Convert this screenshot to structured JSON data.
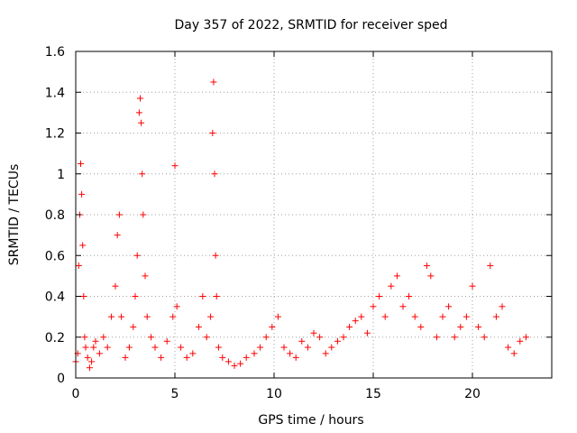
{
  "chart_data": {
    "type": "scatter",
    "title": "Day 357 of 2022, SRMTID for receiver sped",
    "xlabel": "GPS time / hours",
    "ylabel": "SRMTID / TECUs",
    "xlim": [
      0,
      24
    ],
    "ylim": [
      0,
      1.6
    ],
    "xticks": [
      0,
      5,
      10,
      15,
      20
    ],
    "yticks": [
      0,
      0.2,
      0.4,
      0.6,
      0.8,
      1,
      1.2,
      1.4,
      1.6
    ],
    "grid": true,
    "marker": "+",
    "colors": {
      "series": "#ff0000",
      "grid": "#a0a0a0",
      "frame": "#000000"
    },
    "series": [
      {
        "name": "SRMTID",
        "x": [
          0.0,
          0.1,
          0.15,
          0.2,
          0.25,
          0.3,
          0.35,
          0.4,
          0.45,
          0.5,
          0.6,
          0.7,
          0.8,
          0.9,
          1.0,
          1.2,
          1.4,
          1.6,
          1.8,
          2.0,
          2.1,
          2.2,
          2.3,
          2.5,
          2.7,
          2.9,
          3.0,
          3.1,
          3.2,
          3.25,
          3.3,
          3.35,
          3.4,
          3.5,
          3.6,
          3.8,
          4.0,
          4.3,
          4.6,
          4.9,
          5.0,
          5.1,
          5.3,
          5.6,
          5.9,
          6.2,
          6.4,
          6.6,
          6.8,
          6.9,
          6.95,
          7.0,
          7.05,
          7.1,
          7.2,
          7.4,
          7.7,
          8.0,
          8.3,
          8.6,
          9.0,
          9.3,
          9.6,
          9.9,
          10.2,
          10.5,
          10.8,
          11.1,
          11.4,
          11.7,
          12.0,
          12.3,
          12.6,
          12.9,
          13.2,
          13.5,
          13.8,
          14.1,
          14.4,
          14.7,
          15.0,
          15.3,
          15.6,
          15.9,
          16.2,
          16.5,
          16.8,
          17.1,
          17.4,
          17.7,
          17.9,
          18.2,
          18.5,
          18.8,
          19.1,
          19.4,
          19.7,
          20.0,
          20.3,
          20.6,
          20.9,
          21.2,
          21.5,
          21.8,
          22.1,
          22.4,
          22.7
        ],
        "y": [
          0.08,
          0.12,
          0.55,
          0.8,
          1.05,
          0.9,
          0.65,
          0.4,
          0.2,
          0.15,
          0.1,
          0.05,
          0.08,
          0.15,
          0.18,
          0.12,
          0.2,
          0.15,
          0.3,
          0.45,
          0.7,
          0.8,
          0.3,
          0.1,
          0.15,
          0.25,
          0.4,
          0.6,
          1.3,
          1.37,
          1.25,
          1.0,
          0.8,
          0.5,
          0.3,
          0.2,
          0.15,
          0.1,
          0.18,
          0.3,
          1.04,
          0.35,
          0.15,
          0.1,
          0.12,
          0.25,
          0.4,
          0.2,
          0.3,
          1.2,
          1.45,
          1.0,
          0.6,
          0.4,
          0.15,
          0.1,
          0.08,
          0.06,
          0.07,
          0.1,
          0.12,
          0.15,
          0.2,
          0.25,
          0.3,
          0.15,
          0.12,
          0.1,
          0.18,
          0.15,
          0.22,
          0.2,
          0.12,
          0.15,
          0.18,
          0.2,
          0.25,
          0.28,
          0.3,
          0.22,
          0.35,
          0.4,
          0.3,
          0.45,
          0.5,
          0.35,
          0.4,
          0.3,
          0.25,
          0.55,
          0.5,
          0.2,
          0.3,
          0.35,
          0.2,
          0.25,
          0.3,
          0.45,
          0.25,
          0.2,
          0.55,
          0.3,
          0.35,
          0.15,
          0.12,
          0.18,
          0.2
        ]
      }
    ]
  }
}
